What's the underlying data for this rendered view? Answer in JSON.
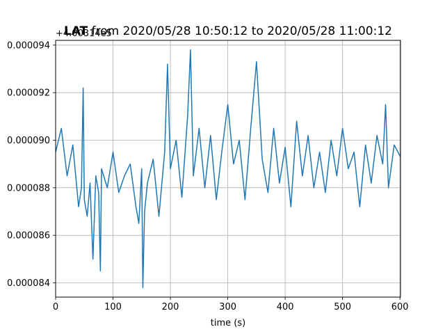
{
  "chart_data": {
    "type": "line",
    "title_bold": "LAT",
    "title_rest": " from 2020/05/28 10:50:12 to 2020/05/28 11:00:12",
    "xlabel": "time (s)",
    "ylabel": "",
    "offset_text": "+4.00314e5",
    "xlim": [
      0,
      601
    ],
    "ylim": [
      8.34e-05,
      9.42e-05
    ],
    "xticks": [
      0,
      100,
      200,
      300,
      400,
      500,
      600
    ],
    "xtick_labels": [
      "0",
      "100",
      "200",
      "300",
      "400",
      "500",
      "600"
    ],
    "yticks": [
      8.4e-05,
      8.6e-05,
      8.8e-05,
      9e-05,
      9.2e-05,
      9.4e-05
    ],
    "ytick_labels": [
      "0.000084",
      "0.000086",
      "0.000088",
      "0.000090",
      "0.000092",
      "0.000094"
    ],
    "grid": true,
    "color": "#1f77b4",
    "series": [
      {
        "x": [
          0,
          10,
          20,
          30,
          40,
          45,
          48,
          50,
          55,
          60,
          65,
          70,
          75,
          78,
          80,
          90,
          100,
          110,
          120,
          130,
          140,
          145,
          150,
          152,
          155,
          160,
          170,
          180,
          190,
          195,
          200,
          210,
          220,
          230,
          235,
          240,
          250,
          260,
          270,
          280,
          290,
          300,
          310,
          320,
          330,
          340,
          350,
          360,
          370,
          380,
          390,
          400,
          410,
          420,
          430,
          440,
          450,
          460,
          470,
          480,
          490,
          500,
          510,
          520,
          530,
          540,
          550,
          560,
          570,
          575,
          580,
          590,
          601
        ],
        "y": [
          8.95e-05,
          9.05e-05,
          8.85e-05,
          8.98e-05,
          8.72e-05,
          8.8e-05,
          9.22e-05,
          8.75e-05,
          8.68e-05,
          8.82e-05,
          8.5e-05,
          8.85e-05,
          8.78e-05,
          8.45e-05,
          8.88e-05,
          8.8e-05,
          8.95e-05,
          8.78e-05,
          8.85e-05,
          8.9e-05,
          8.72e-05,
          8.65e-05,
          8.88e-05,
          8.38e-05,
          8.7e-05,
          8.82e-05,
          8.92e-05,
          8.68e-05,
          8.95e-05,
          9.32e-05,
          8.88e-05,
          9e-05,
          8.76e-05,
          9.1e-05,
          9.38e-05,
          8.85e-05,
          9.05e-05,
          8.8e-05,
          9.02e-05,
          8.75e-05,
          8.96e-05,
          9.15e-05,
          8.9e-05,
          9e-05,
          8.75e-05,
          9.05e-05,
          9.33e-05,
          8.92e-05,
          8.78e-05,
          9.05e-05,
          8.82e-05,
          8.97e-05,
          8.72e-05,
          9.08e-05,
          8.85e-05,
          9.02e-05,
          8.8e-05,
          8.95e-05,
          8.78e-05,
          9e-05,
          8.85e-05,
          9.05e-05,
          8.88e-05,
          8.95e-05,
          8.72e-05,
          8.98e-05,
          8.82e-05,
          9.02e-05,
          8.9e-05,
          9.15e-05,
          8.8e-05,
          8.98e-05,
          8.93e-05
        ]
      }
    ]
  }
}
